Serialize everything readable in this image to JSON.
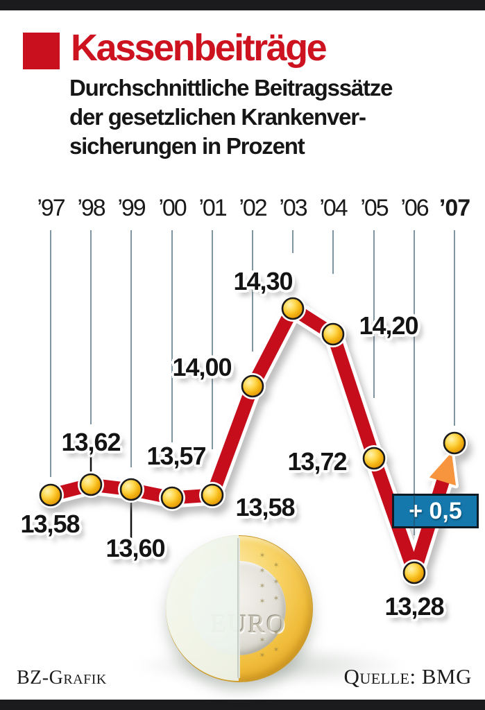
{
  "header": {
    "title": "Kassenbeiträge",
    "subtitle_lines": [
      "Durchschnittliche Beitragssätze",
      "der gesetzlichen Krankenver-",
      "sicherungen in Prozent"
    ]
  },
  "chart_data": {
    "type": "line",
    "title": "Kassenbeiträge",
    "subtitle": "Durchschnittliche Beitragssätze der gesetzlichen Krankenversicherungen in Prozent",
    "unit": "Prozent",
    "categories": [
      "’97",
      "’98",
      "’99",
      "’00",
      "’01",
      "’02",
      "’03",
      "’04",
      "’05",
      "’06",
      "’07"
    ],
    "values": [
      13.58,
      13.62,
      13.6,
      13.57,
      13.58,
      14.0,
      14.3,
      14.2,
      13.72,
      13.28,
      null
    ],
    "value_labels": [
      "13,58",
      "13,62",
      "13,60",
      "13,57",
      "13,58",
      "14,00",
      "14,30",
      "14,20",
      "13,72",
      "13,28"
    ],
    "forecast": {
      "year": "’07",
      "delta": 0.5,
      "badge_label": "+ 0,5"
    },
    "line_color": "#c5101c",
    "dot_color": "#f4b513",
    "grid_color": "#7f95a1",
    "arrow_color": "#f6953c",
    "ylim": [
      13.2,
      14.4
    ],
    "legend": "none",
    "grid": "vertical-drop-lines"
  },
  "badge": {
    "label": "+ 0,5",
    "bg_color": "#1478ad"
  },
  "coin": {
    "label": "EURO",
    "star_glyph": "✶"
  },
  "footer": {
    "credit": "BZ-Grafik",
    "source": "Quelle: BMG"
  }
}
